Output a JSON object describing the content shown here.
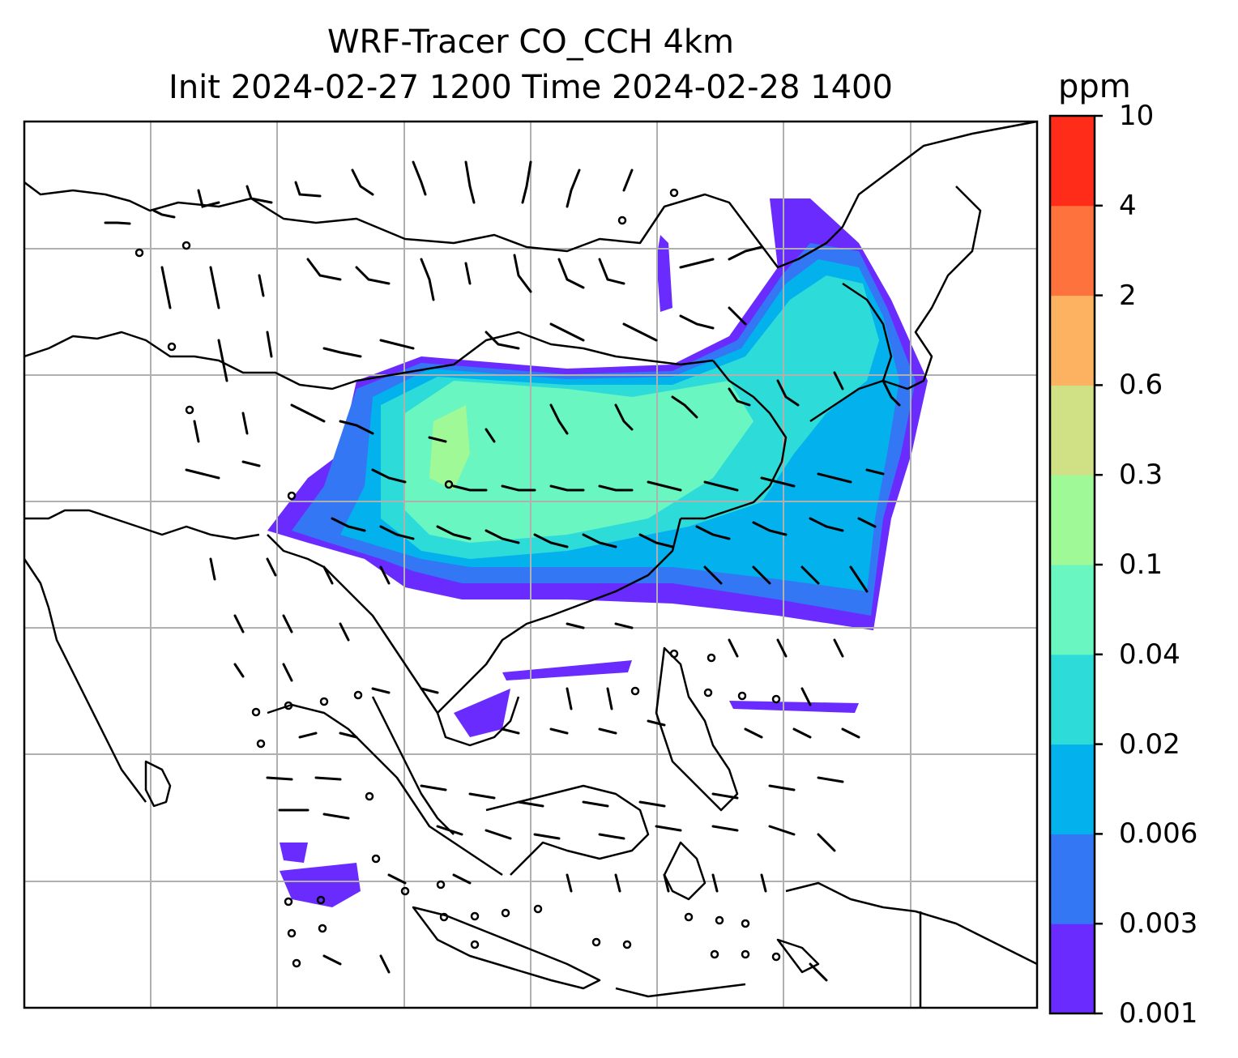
{
  "title": {
    "line1": "WRF-Tracer CO_CCH 4km",
    "line2": "Init 2024-02-27 1200 Time 2024-02-28 1400"
  },
  "colorbar": {
    "unit": "ppm",
    "levels": [
      "0.001",
      "0.003",
      "0.006",
      "0.02",
      "0.04",
      "0.1",
      "0.3",
      "0.6",
      "2",
      "4",
      "10"
    ],
    "colors": [
      "#6a2bff",
      "#3377f5",
      "#03b1ec",
      "#2ddcd8",
      "#6af6c0",
      "#9ff996",
      "#d0e085",
      "#fdb261",
      "#fd723d",
      "#ff2c1a"
    ]
  },
  "map": {
    "gridlines": true,
    "field": "CO_CCH tracer concentration",
    "overlay": "wind barbs"
  }
}
